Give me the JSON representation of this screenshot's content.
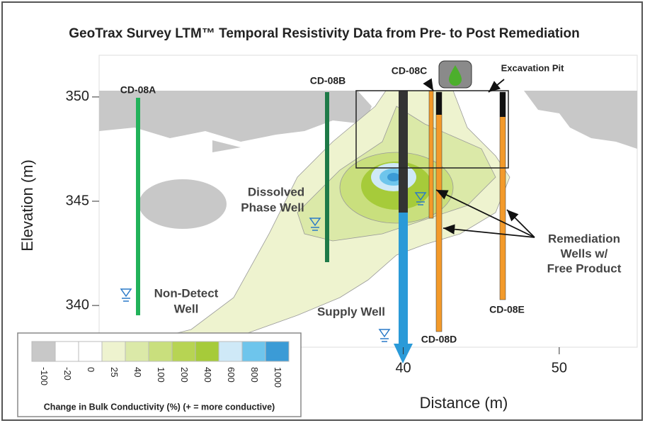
{
  "chart_data": {
    "type": "contour",
    "title": "GeoTrax Survey LTM™ Temporal Resistivity Data from Pre- to Post Remediation",
    "xlabel": "Distance (m)",
    "ylabel": "Elevation (m)",
    "xlim": [
      20.5,
      55
    ],
    "ylim": [
      338,
      352
    ],
    "xticks": [
      40,
      50
    ],
    "yticks": [
      340,
      345,
      350
    ],
    "colorscale": {
      "label": "Change in Bulk Conductivity (%) (+ = more conductive)",
      "ticks": [
        -100,
        -20,
        0,
        25,
        40,
        100,
        200,
        400,
        600,
        800,
        1000
      ],
      "colors": [
        "#c8c8c8",
        "#ffffff",
        "#ffffff",
        "#eef3cf",
        "#dbe9a8",
        "#c9df7d",
        "#b7d453",
        "#a6cb3a",
        "#cfe9f7",
        "#6ec5ec",
        "#3b9bd6"
      ]
    },
    "annotations": {
      "cd08a": "CD-08A",
      "cd08b": "CD-08B",
      "cd08c": "CD-08C",
      "cd08d": "CD-08D",
      "cd08e": "CD-08E",
      "pit": "Excavation Pit",
      "dissolved": [
        "Dissolved",
        "Phase Well"
      ],
      "nondetect": [
        "Non-Detect",
        "Well"
      ],
      "supply": "Supply Well",
      "remediation": [
        "Remediation",
        "Wells w/",
        "Free Product"
      ]
    }
  }
}
